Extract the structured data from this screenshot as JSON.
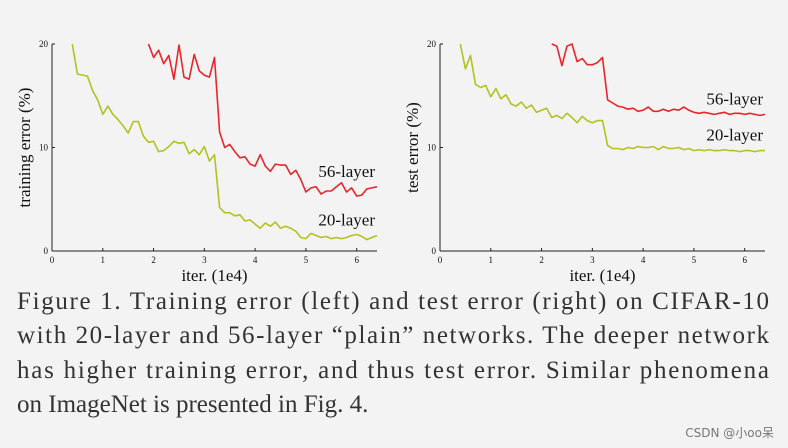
{
  "chart_data": [
    {
      "type": "line",
      "xlabel": "iter. (1e4)",
      "ylabel": "training error (%)",
      "xlim": [
        0,
        6.4
      ],
      "ylim": [
        0,
        20
      ],
      "xticks": [
        0,
        1,
        2,
        3,
        4,
        5,
        6
      ],
      "yticks": [
        0,
        10,
        20
      ],
      "series": [
        {
          "name": "56-layer",
          "color": "#e8262a",
          "x": [
            1.9,
            2.0,
            2.1,
            2.2,
            2.3,
            2.4,
            2.5,
            2.6,
            2.7,
            2.8,
            2.9,
            3.0,
            3.1,
            3.2,
            3.3,
            3.4,
            3.5,
            3.6,
            3.7,
            3.8,
            3.9,
            4.0,
            4.1,
            4.2,
            4.3,
            4.4,
            4.5,
            4.6,
            4.7,
            4.8,
            4.9,
            5.0,
            5.1,
            5.2,
            5.3,
            5.4,
            5.5,
            5.6,
            5.7,
            5.8,
            5.9,
            6.0,
            6.1,
            6.2,
            6.3,
            6.4
          ],
          "values": [
            20,
            18.7,
            19.4,
            18.1,
            18.9,
            16.6,
            19.9,
            16.8,
            16.6,
            19.0,
            17.4,
            17.0,
            16.8,
            18.7,
            11.5,
            10.0,
            10.3,
            9.6,
            9.0,
            9.1,
            8.4,
            8.2,
            9.3,
            8.2,
            7.7,
            8.4,
            8.3,
            8.3,
            7.4,
            7.8,
            6.9,
            5.7,
            6.1,
            6.2,
            5.5,
            5.8,
            5.8,
            6.2,
            6.6,
            5.7,
            6.1,
            5.3,
            5.4,
            6.0,
            6.1,
            6.2
          ]
        },
        {
          "name": "20-layer",
          "color": "#b2c21e",
          "x": [
            0.4,
            0.5,
            0.6,
            0.7,
            0.8,
            0.9,
            1.0,
            1.1,
            1.2,
            1.3,
            1.4,
            1.5,
            1.6,
            1.7,
            1.8,
            1.9,
            2.0,
            2.1,
            2.2,
            2.3,
            2.4,
            2.5,
            2.6,
            2.7,
            2.8,
            2.9,
            3.0,
            3.1,
            3.2,
            3.3,
            3.4,
            3.5,
            3.6,
            3.7,
            3.8,
            3.9,
            4.0,
            4.1,
            4.2,
            4.3,
            4.4,
            4.5,
            4.6,
            4.7,
            4.8,
            4.9,
            5.0,
            5.1,
            5.2,
            5.3,
            5.4,
            5.5,
            5.6,
            5.7,
            5.8,
            5.9,
            6.0,
            6.1,
            6.2,
            6.3,
            6.4
          ],
          "values": [
            20,
            17.1,
            17.0,
            16.9,
            15.5,
            14.6,
            13.2,
            14.0,
            13.2,
            12.7,
            12.1,
            11.4,
            12.5,
            12.5,
            11.1,
            10.5,
            10.6,
            9.6,
            9.7,
            10.1,
            10.6,
            10.4,
            10.5,
            9.4,
            9.8,
            9.3,
            10.1,
            8.7,
            9.3,
            4.2,
            3.7,
            3.7,
            3.4,
            3.5,
            2.9,
            3.0,
            2.6,
            2.2,
            2.7,
            2.4,
            2.8,
            2.2,
            2.4,
            2.2,
            1.9,
            1.3,
            1.2,
            1.7,
            1.5,
            1.3,
            1.4,
            1.2,
            1.3,
            1.2,
            1.3,
            1.5,
            1.6,
            1.4,
            1.1,
            1.3,
            1.5
          ]
        }
      ]
    },
    {
      "type": "line",
      "xlabel": "iter. (1e4)",
      "ylabel": "test error (%)",
      "xlim": [
        0,
        6.4
      ],
      "ylim": [
        0,
        20
      ],
      "xticks": [
        0,
        1,
        2,
        3,
        4,
        5,
        6
      ],
      "yticks": [
        0,
        10,
        20
      ],
      "series": [
        {
          "name": "56-layer",
          "color": "#e8262a",
          "x": [
            2.2,
            2.3,
            2.4,
            2.5,
            2.6,
            2.7,
            2.8,
            2.9,
            3.0,
            3.1,
            3.2,
            3.3,
            3.4,
            3.5,
            3.6,
            3.7,
            3.8,
            3.9,
            4.0,
            4.1,
            4.2,
            4.3,
            4.4,
            4.5,
            4.6,
            4.7,
            4.8,
            4.9,
            5.0,
            5.1,
            5.2,
            5.3,
            5.4,
            5.5,
            5.6,
            5.7,
            5.8,
            5.9,
            6.0,
            6.1,
            6.2,
            6.3,
            6.4
          ],
          "values": [
            20,
            19.8,
            17.9,
            19.8,
            20,
            18.3,
            18.6,
            18.0,
            18.0,
            18.2,
            18.7,
            14.6,
            14.3,
            14.0,
            13.9,
            13.7,
            13.8,
            13.5,
            13.6,
            13.9,
            13.5,
            13.5,
            13.7,
            13.5,
            13.7,
            13.6,
            13.9,
            13.6,
            13.4,
            13.3,
            13.4,
            13.3,
            13.2,
            13.3,
            13.4,
            13.2,
            13.3,
            13.3,
            13.2,
            13.3,
            13.2,
            13.1,
            13.2
          ]
        },
        {
          "name": "20-layer",
          "color": "#b2c21e",
          "x": [
            0.4,
            0.5,
            0.6,
            0.7,
            0.8,
            0.9,
            1.0,
            1.1,
            1.2,
            1.3,
            1.4,
            1.5,
            1.6,
            1.7,
            1.8,
            1.9,
            2.0,
            2.1,
            2.2,
            2.3,
            2.4,
            2.5,
            2.6,
            2.7,
            2.8,
            2.9,
            3.0,
            3.1,
            3.2,
            3.3,
            3.4,
            3.5,
            3.6,
            3.7,
            3.8,
            3.9,
            4.0,
            4.1,
            4.2,
            4.3,
            4.4,
            4.5,
            4.6,
            4.7,
            4.8,
            4.9,
            5.0,
            5.1,
            5.2,
            5.3,
            5.4,
            5.5,
            5.6,
            5.7,
            5.8,
            5.9,
            6.0,
            6.1,
            6.2,
            6.3,
            6.4
          ],
          "values": [
            20,
            17.6,
            18.9,
            16.1,
            15.8,
            16.0,
            14.9,
            15.7,
            14.7,
            15.1,
            14.2,
            14.0,
            14.4,
            13.8,
            14.1,
            13.4,
            13.6,
            13.8,
            12.9,
            13.1,
            12.8,
            13.3,
            12.9,
            12.4,
            13.0,
            12.6,
            12.4,
            12.6,
            12.6,
            10.2,
            9.9,
            9.9,
            9.8,
            10.0,
            9.9,
            10.1,
            10.0,
            10.0,
            10.1,
            9.8,
            10.1,
            9.9,
            9.9,
            10.0,
            9.8,
            9.9,
            9.7,
            9.8,
            9.7,
            9.8,
            9.7,
            9.7,
            9.8,
            9.7,
            9.7,
            9.6,
            9.7,
            9.7,
            9.6,
            9.7,
            9.7
          ]
        }
      ]
    }
  ],
  "caption": {
    "lines": [
      "Figure 1. Training error (left) and test error (right) on CIFAR-10",
      "with 20-layer and 56-layer “plain” networks. The deeper network",
      "has higher training error, and thus test error.  Similar phenomena",
      "on ImageNet is presented in Fig. 4."
    ]
  },
  "watermark": "CSDN @小oo呆"
}
